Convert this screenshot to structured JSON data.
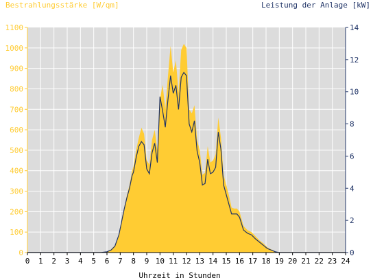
{
  "chart_data": {
    "type": "area",
    "title": "",
    "ylabel_left": "Bestrahlungsstärke [W/qm]",
    "ylabel_right": "Leistung der Anlage [kW]",
    "xlabel": "Uhrzeit in Stunden",
    "xlim": [
      0,
      24
    ],
    "ylim_left": [
      0,
      1100
    ],
    "ylim_right": [
      0,
      14
    ],
    "x_ticks": [
      0,
      1,
      2,
      3,
      4,
      5,
      6,
      7,
      8,
      9,
      10,
      11,
      12,
      13,
      14,
      15,
      16,
      17,
      18,
      19,
      20,
      21,
      22,
      23,
      24
    ],
    "y_left_ticks": [
      0,
      100,
      200,
      300,
      400,
      500,
      600,
      700,
      800,
      900,
      1000,
      1100
    ],
    "y_right_ticks": [
      0,
      2,
      4,
      6,
      8,
      10,
      12,
      14
    ],
    "grid": true,
    "colors": {
      "plot_background": "#dcdcdc",
      "grid": "#ffffff",
      "irradiance_fill": "#ffcc33",
      "power_line": "#1f3366",
      "left_axis": "#ffcc33",
      "right_axis": "#1f3366"
    },
    "series": [
      {
        "axis": "left",
        "style": "area",
        "x": [
          0,
          5.5,
          6,
          6.3,
          6.6,
          6.9,
          7.1,
          7.3,
          7.5,
          7.7,
          7.9,
          8.0,
          8.2,
          8.4,
          8.6,
          8.8,
          9.0,
          9.2,
          9.4,
          9.6,
          9.8,
          10.0,
          10.2,
          10.4,
          10.6,
          10.8,
          11.0,
          11.2,
          11.4,
          11.6,
          11.8,
          12.0,
          12.2,
          12.4,
          12.6,
          12.8,
          13.0,
          13.2,
          13.4,
          13.6,
          13.8,
          14.0,
          14.2,
          14.4,
          14.6,
          14.8,
          15.0,
          15.2,
          15.4,
          15.6,
          15.8,
          16.0,
          16.3,
          16.6,
          16.9,
          17.2,
          17.5,
          17.8,
          18.1,
          18.4,
          18.7,
          19.0,
          19.3,
          24
        ],
        "values": [
          0,
          0,
          5,
          15,
          35,
          90,
          160,
          220,
          280,
          330,
          400,
          420,
          500,
          560,
          610,
          580,
          450,
          430,
          550,
          600,
          500,
          750,
          820,
          700,
          860,
          1010,
          880,
          940,
          780,
          990,
          1020,
          1000,
          700,
          680,
          720,
          550,
          500,
          380,
          390,
          520,
          440,
          450,
          480,
          660,
          560,
          380,
          330,
          280,
          220,
          215,
          215,
          200,
          130,
          110,
          100,
          80,
          60,
          45,
          25,
          15,
          5,
          0,
          0,
          0
        ]
      },
      {
        "axis": "right",
        "style": "line",
        "x": [
          0,
          5.5,
          6,
          6.3,
          6.6,
          6.9,
          7.1,
          7.3,
          7.5,
          7.7,
          7.9,
          8.0,
          8.2,
          8.4,
          8.6,
          8.8,
          9.0,
          9.2,
          9.4,
          9.6,
          9.8,
          10.0,
          10.2,
          10.4,
          10.6,
          10.8,
          11.0,
          11.2,
          11.4,
          11.6,
          11.8,
          12.0,
          12.2,
          12.4,
          12.6,
          12.8,
          13.0,
          13.2,
          13.4,
          13.6,
          13.8,
          14.0,
          14.2,
          14.4,
          14.6,
          14.8,
          15.0,
          15.2,
          15.4,
          15.6,
          15.8,
          16.0,
          16.3,
          16.6,
          16.9,
          17.2,
          17.5,
          17.8,
          18.1,
          18.4,
          18.7,
          19.0,
          19.3,
          24
        ],
        "values": [
          0,
          0,
          0.05,
          0.15,
          0.4,
          1.1,
          1.9,
          2.7,
          3.4,
          4.0,
          4.8,
          5.0,
          5.9,
          6.6,
          6.9,
          6.7,
          5.2,
          4.9,
          6.2,
          6.8,
          5.6,
          9.7,
          8.8,
          7.8,
          9.5,
          11.0,
          9.9,
          10.4,
          8.9,
          10.9,
          11.2,
          11.0,
          8.0,
          7.5,
          8.2,
          6.3,
          5.6,
          4.2,
          4.3,
          5.8,
          4.9,
          5.0,
          5.3,
          7.5,
          6.4,
          4.2,
          3.6,
          3.0,
          2.4,
          2.4,
          2.4,
          2.2,
          1.4,
          1.2,
          1.1,
          0.85,
          0.65,
          0.45,
          0.25,
          0.15,
          0.05,
          0,
          0,
          0
        ]
      }
    ]
  }
}
